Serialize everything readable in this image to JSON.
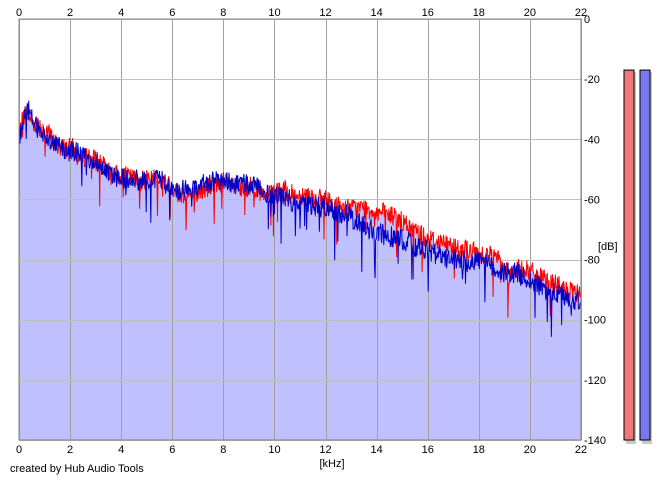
{
  "credit": "created by Hub Audio Tools",
  "chart_data": {
    "type": "area",
    "xlabel": "[kHz]",
    "ylabel": "[dB]",
    "xlim": [
      0,
      22
    ],
    "ylim": [
      -140,
      0
    ],
    "x_ticks": [
      0,
      2,
      4,
      6,
      8,
      10,
      12,
      14,
      16,
      18,
      20,
      22
    ],
    "y_ticks": [
      0,
      -20,
      -40,
      -60,
      -80,
      -100,
      -120,
      -140
    ],
    "grid": true,
    "colors": {
      "fill": "#c0c0ff",
      "left_line": "#ff0000",
      "right_line": "#0000c8",
      "left_meter": "#f07878",
      "right_meter": "#7878f0"
    },
    "series": [
      {
        "color": "#ff0000",
        "x": [
          0.0,
          0.1,
          0.2,
          0.35,
          0.5,
          0.7,
          0.9,
          1.1,
          1.3,
          1.5,
          1.8,
          2.1,
          2.4,
          2.7,
          3.0,
          3.3,
          3.6,
          4.0,
          4.4,
          4.8,
          5.2,
          5.6,
          6.0,
          6.4,
          6.8,
          7.2,
          7.6,
          8.0,
          8.4,
          8.8,
          9.2,
          9.6,
          10.0,
          10.4,
          10.8,
          11.2,
          11.6,
          12.0,
          12.4,
          12.8,
          13.2,
          13.6,
          14.0,
          14.4,
          14.8,
          15.2,
          15.6,
          16.0,
          16.4,
          16.8,
          17.2,
          17.6,
          18.0,
          18.4,
          18.8,
          19.2,
          19.6,
          20.0,
          20.4,
          20.8,
          21.2,
          21.6,
          22.0
        ],
        "values": [
          -40,
          -35,
          -32,
          -31,
          -34,
          -35,
          -36,
          -37,
          -40,
          -42,
          -43,
          -43,
          -47,
          -45,
          -47,
          -49,
          -52,
          -52,
          -53,
          -54,
          -52,
          -54,
          -56,
          -58,
          -59,
          -57,
          -55,
          -54,
          -56,
          -57,
          -55,
          -60,
          -58,
          -57,
          -59,
          -58,
          -60,
          -60,
          -62,
          -63,
          -63,
          -63,
          -64,
          -65,
          -66,
          -69,
          -71,
          -73,
          -74,
          -75,
          -76,
          -77,
          -78,
          -78,
          -80,
          -85,
          -83,
          -84,
          -86,
          -88,
          -89,
          -91,
          -92
        ]
      },
      {
        "color": "#0000c8",
        "x": [
          0.0,
          0.1,
          0.2,
          0.35,
          0.5,
          0.7,
          0.9,
          1.1,
          1.3,
          1.5,
          1.8,
          2.1,
          2.4,
          2.7,
          3.0,
          3.3,
          3.6,
          4.0,
          4.4,
          4.8,
          5.2,
          5.6,
          6.0,
          6.4,
          6.8,
          7.2,
          7.6,
          8.0,
          8.4,
          8.8,
          9.2,
          9.6,
          10.0,
          10.4,
          10.8,
          11.2,
          11.6,
          12.0,
          12.4,
          12.8,
          13.2,
          13.6,
          14.0,
          14.4,
          14.8,
          15.2,
          15.6,
          16.0,
          16.4,
          16.8,
          17.2,
          17.6,
          18.0,
          18.4,
          18.8,
          19.2,
          19.6,
          20.0,
          20.4,
          20.8,
          21.2,
          21.6,
          22.0
        ],
        "values": [
          -42,
          -36,
          -33,
          -30,
          -33,
          -36,
          -38,
          -39,
          -41,
          -42,
          -44,
          -44,
          -45,
          -46,
          -47,
          -49,
          -52,
          -53,
          -53,
          -54,
          -53,
          -54,
          -57,
          -57,
          -56,
          -55,
          -54,
          -54,
          -55,
          -55,
          -55,
          -58,
          -58,
          -59,
          -61,
          -62,
          -62,
          -63,
          -64,
          -65,
          -67,
          -69,
          -71,
          -72,
          -73,
          -74,
          -76,
          -77,
          -79,
          -80,
          -80,
          -81,
          -80,
          -82,
          -84,
          -84,
          -85,
          -87,
          -89,
          -91,
          -92,
          -93,
          -94
        ]
      }
    ],
    "level_meters": [
      {
        "color": "#f07878",
        "value": -10
      },
      {
        "color": "#7878f0",
        "value": -10
      }
    ]
  }
}
